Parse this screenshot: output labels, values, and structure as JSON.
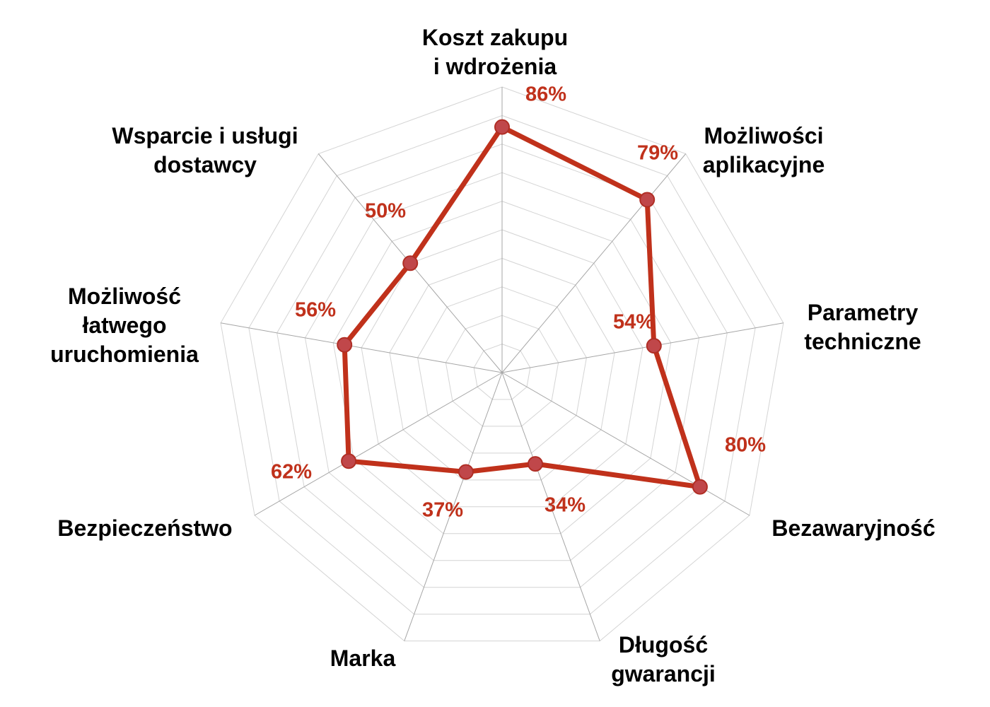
{
  "chart_data": {
    "type": "radar",
    "title": "",
    "categories": [
      {
        "lines": [
          "Koszt zakupu",
          "i  wdrożenia"
        ]
      },
      {
        "lines": [
          "Możliwości",
          "aplikacyjne"
        ]
      },
      {
        "lines": [
          "Parametry",
          "techniczne"
        ]
      },
      {
        "lines": [
          "Bezawaryjność"
        ]
      },
      {
        "lines": [
          "Długość",
          "gwarancji"
        ]
      },
      {
        "lines": [
          "Marka"
        ]
      },
      {
        "lines": [
          "Bezpieczeństwo"
        ]
      },
      {
        "lines": [
          "Możliwość",
          "łatwego",
          "uruchomienia"
        ]
      },
      {
        "lines": [
          "Wsparcie i usługi",
          "dostawcy"
        ]
      }
    ],
    "series": [
      {
        "values": [
          86,
          79,
          54,
          80,
          34,
          37,
          62,
          56,
          50
        ],
        "value_labels": [
          "86%",
          "79%",
          "54%",
          "80%",
          "34%",
          "37%",
          "62%",
          "56%",
          "50%"
        ]
      }
    ],
    "scale": [
      0,
      100
    ],
    "gridlines": 10,
    "grid": true,
    "legend": "none",
    "colors": {
      "series_line": "#c0311b",
      "marker_fill": "#c0474a",
      "marker_stroke": "#b02e25",
      "value_label": "#c0311b",
      "grid": "#d4d4d4",
      "spoke": "#a6a6a6"
    }
  }
}
